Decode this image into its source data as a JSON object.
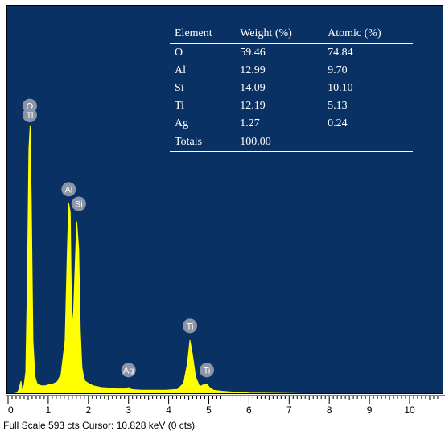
{
  "chart_data": {
    "type": "line",
    "title": "",
    "xlabel": "",
    "ylabel": "",
    "xlim": [
      0,
      10.7
    ],
    "ylim": [
      0,
      660
    ],
    "x_ticks": [
      "0",
      "1",
      "2",
      "3",
      "4",
      "5",
      "6",
      "7",
      "8",
      "9",
      "10"
    ],
    "series": [
      {
        "values_description_note": "",
        "x": [
          0.0,
          0.1,
          0.2,
          0.25,
          0.3,
          0.33,
          0.38,
          0.42,
          0.46,
          0.5,
          0.53,
          0.56,
          0.6,
          0.65,
          0.7,
          0.8,
          0.9,
          1.0,
          1.1,
          1.2,
          1.3,
          1.4,
          1.45,
          1.49,
          1.53,
          1.56,
          1.6,
          1.65,
          1.69,
          1.74,
          1.78,
          1.82,
          1.86,
          1.9,
          2.0,
          2.1,
          2.3,
          2.5,
          2.7,
          2.9,
          2.98,
          3.05,
          3.15,
          3.3,
          3.6,
          3.9,
          4.2,
          4.35,
          4.45,
          4.51,
          4.57,
          4.65,
          4.75,
          4.85,
          4.93,
          5.0,
          5.1,
          5.3,
          5.6,
          6.0,
          7.0,
          8.0,
          9.0,
          10.0,
          10.7
        ],
        "y": [
          0,
          2,
          4,
          12,
          30,
          8,
          22,
          50,
          250,
          540,
          590,
          420,
          120,
          40,
          25,
          20,
          20,
          22,
          24,
          28,
          45,
          120,
          300,
          420,
          400,
          200,
          150,
          280,
          380,
          320,
          140,
          60,
          40,
          30,
          24,
          20,
          16,
          15,
          13,
          13,
          16,
          12,
          11,
          10,
          10,
          10,
          12,
          25,
          70,
          120,
          90,
          40,
          18,
          22,
          24,
          16,
          10,
          8,
          6,
          4,
          3,
          2,
          1,
          1,
          0
        ]
      }
    ],
    "peak_labels": [
      {
        "text": "O",
        "x": 0.52,
        "y": 620
      },
      {
        "text": "Ti",
        "x": 0.52,
        "y": 600
      },
      {
        "text": "Al",
        "x": 1.49,
        "y": 437
      },
      {
        "text": "Si",
        "x": 1.74,
        "y": 405
      },
      {
        "text": "Ag",
        "x": 2.98,
        "y": 40
      },
      {
        "text": "Ti",
        "x": 4.51,
        "y": 137
      },
      {
        "text": "Ti",
        "x": 4.93,
        "y": 40
      }
    ],
    "table": {
      "headers": [
        "Element",
        "Weight (%)",
        "Atomic (%)"
      ],
      "rows": [
        [
          "O",
          "59.46",
          "74.84"
        ],
        [
          "Al",
          "12.99",
          "9.70"
        ],
        [
          "Si",
          "14.09",
          "10.10"
        ],
        [
          "Ti",
          "12.19",
          "5.13"
        ],
        [
          "Ag",
          "1.27",
          "0.24"
        ]
      ],
      "totals": [
        "Totals",
        "100.00",
        ""
      ]
    }
  },
  "status_bar": {
    "text": "Full Scale 593 cts  Cursor: 10.828 keV (0 cts)"
  },
  "colors": {
    "background": "#0a3163",
    "trace": "#ffff00",
    "label_circle": "#8c95a6",
    "table_text": "#ffffff"
  }
}
